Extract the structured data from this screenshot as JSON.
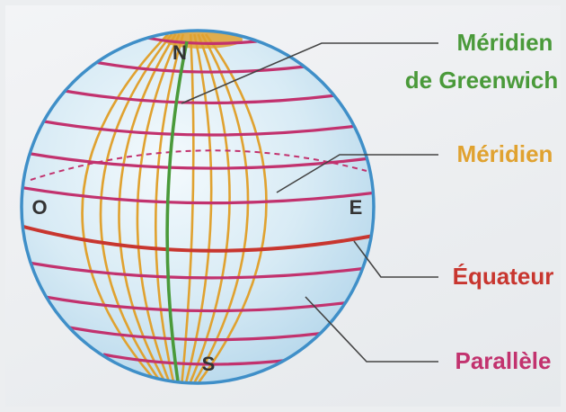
{
  "labels": {
    "greenwich_line1": "Méridien",
    "greenwich_line2": "de Greenwich",
    "meridian": "Méridien",
    "equator": "Équateur",
    "parallel": "Parallèle"
  },
  "compass": {
    "north": "N",
    "south": "S",
    "west": "O",
    "east": "E"
  },
  "colors": {
    "meridian": "#e0a230",
    "greenwich": "#4a9a3a",
    "equator": "#c8362f",
    "parallel": "#c2326e",
    "globe_outline": "#3f8fc8",
    "globe_fill": "#cfe6f2",
    "leader": "#444444"
  }
}
